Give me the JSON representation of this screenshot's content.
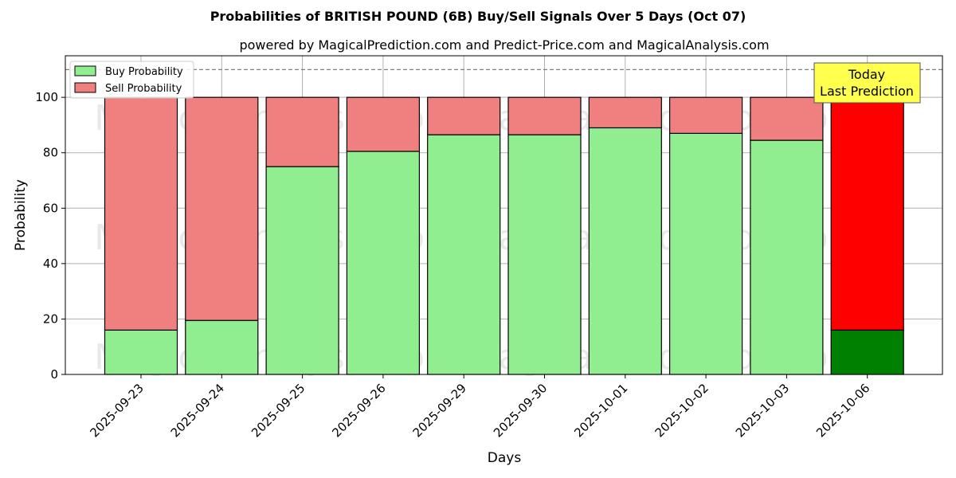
{
  "chart_data": {
    "type": "bar",
    "stacked": true,
    "title": "Probabilities of BRITISH POUND (6B) Buy/Sell Signals Over 5 Days (Oct 07)",
    "subtitle": "powered by MagicalPrediction.com and Predict-Price.com and MagicalAnalysis.com",
    "xlabel": "Days",
    "ylabel": "Probability",
    "ylim": [
      0,
      115
    ],
    "yticks": [
      0,
      20,
      40,
      60,
      80,
      100
    ],
    "reference_line": 110,
    "grid": true,
    "legend_position": "top-left",
    "categories": [
      "2025-09-23",
      "2025-09-24",
      "2025-09-25",
      "2025-09-26",
      "2025-09-29",
      "2025-09-30",
      "2025-10-01",
      "2025-10-02",
      "2025-10-03",
      "2025-10-06"
    ],
    "series": [
      {
        "name": "Buy Probability",
        "values": [
          16,
          19.5,
          75,
          80.5,
          86.5,
          86.5,
          89,
          87,
          84.5,
          16
        ],
        "color": "#90ee90",
        "highlight_color": "#008000"
      },
      {
        "name": "Sell Probability",
        "values": [
          84,
          80.5,
          25,
          19.5,
          13.5,
          13.5,
          11,
          13,
          15.5,
          84
        ],
        "color": "#f08080",
        "highlight_color": "#ff0000"
      }
    ],
    "highlight_index": 9,
    "annotation": {
      "lines": [
        "Today",
        "Last Prediction"
      ],
      "bg_color": "#ffff4d"
    },
    "watermarks": [
      "MagicalAnalysis.com",
      "MagicalPrediction.com"
    ]
  }
}
